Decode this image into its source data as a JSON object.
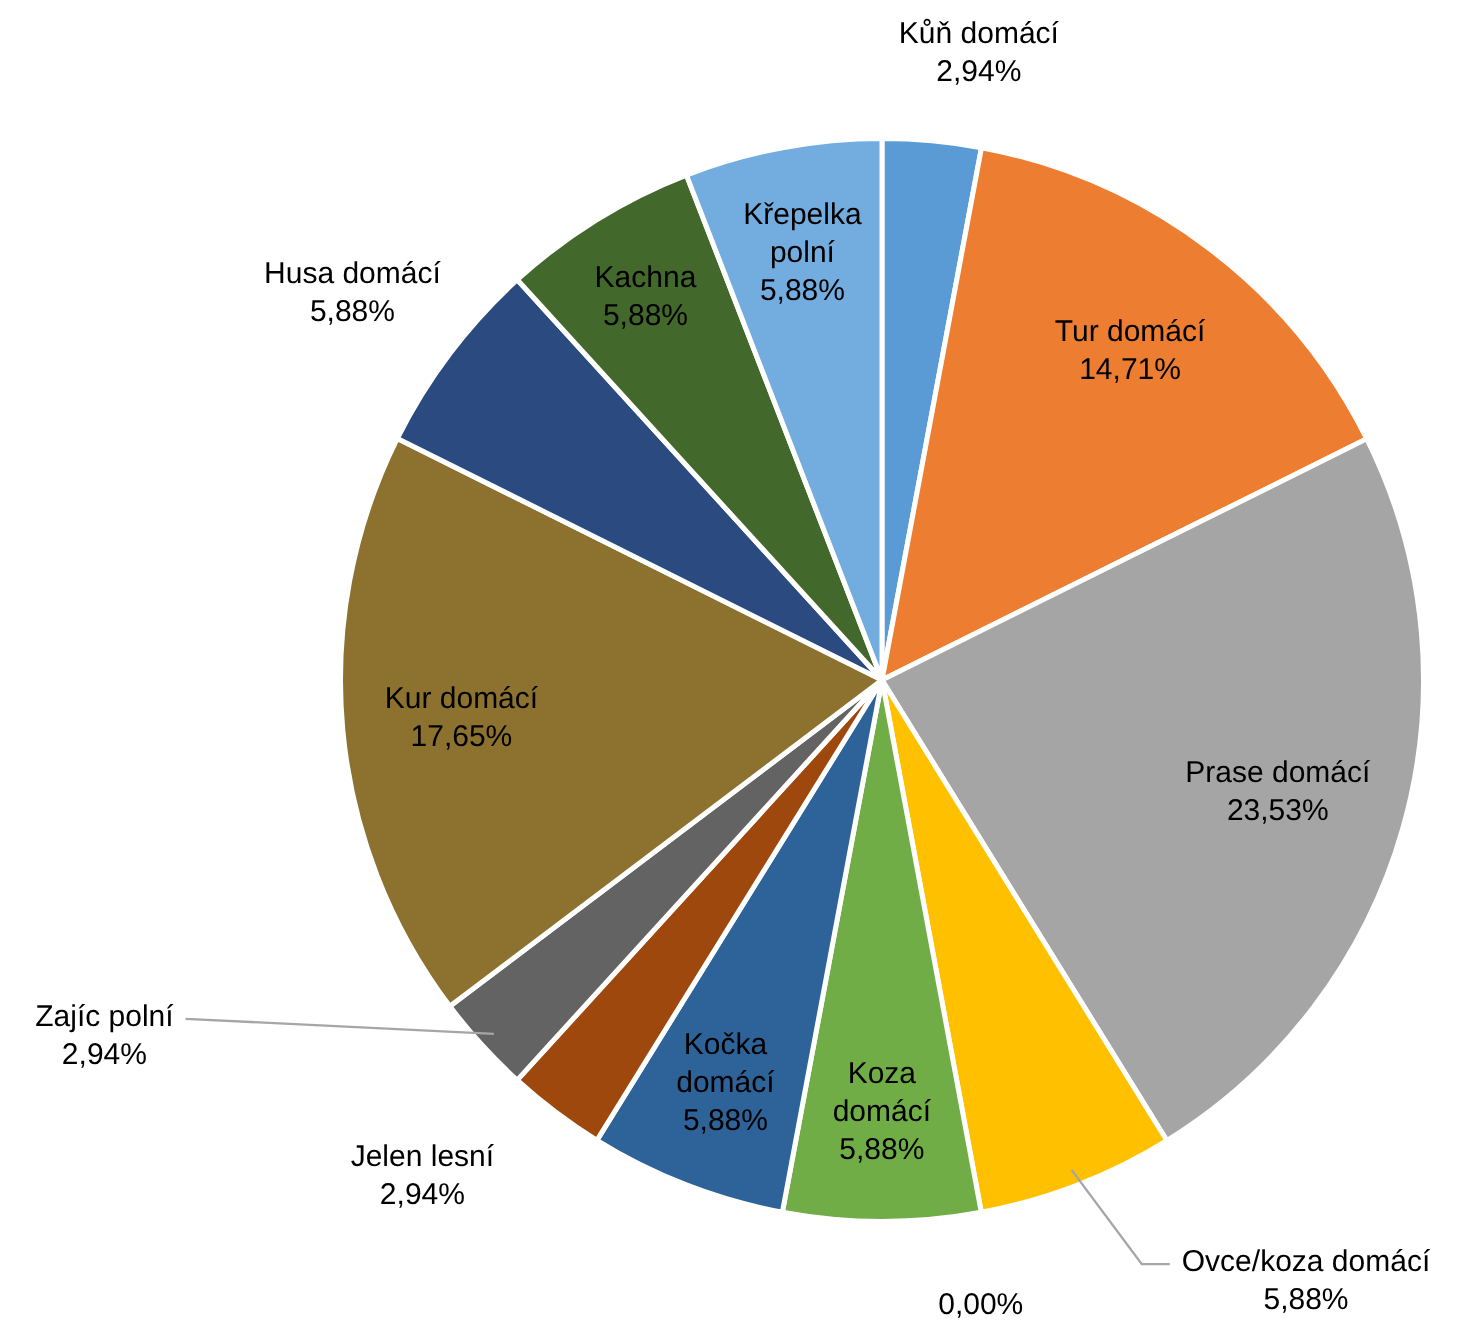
{
  "chart_data": {
    "type": "pie",
    "categories": [
      "Kůň domácí",
      "Tur domácí",
      "Prase domácí",
      "Ovce/koza domácí",
      null,
      "Koza domácí",
      "Kočka domácí",
      "Jelen lesní",
      "Zajíc polní",
      "Kur domácí",
      "Husa domácí",
      "Kachna",
      "Křepelka polní"
    ],
    "values": [
      2.94,
      14.71,
      23.53,
      5.88,
      0,
      5.88,
      5.88,
      2.94,
      2.94,
      17.65,
      5.88,
      5.88,
      5.88
    ],
    "value_labels": [
      "2,94%",
      "14,71%",
      "23,53%",
      "5,88%",
      "0,00%",
      "5,88%",
      "5,88%",
      "2,94%",
      "2,94%",
      "17,65%",
      "5,88%",
      "5,88%",
      "5,88%"
    ],
    "colors": [
      "#5b9bd5",
      "#ed7d31",
      "#a5a5a5",
      "#ffc000",
      "#4472c4",
      "#70ad47",
      "#2e6399",
      "#9e480e",
      "#636363",
      "#8d722f",
      "#2a4a80",
      "#43682b",
      "#73acdf"
    ],
    "legend": false
  }
}
